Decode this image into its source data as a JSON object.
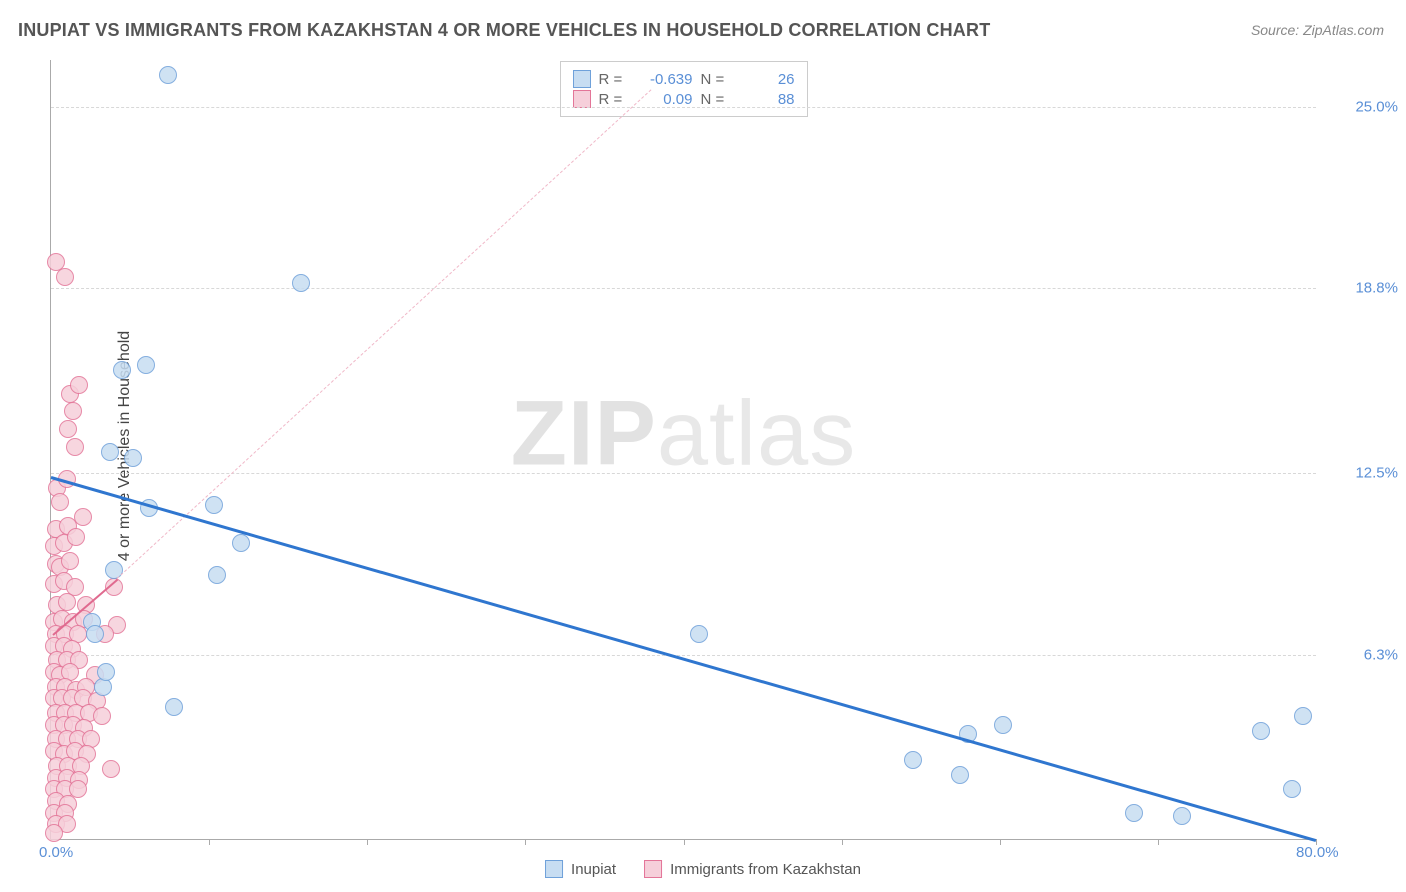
{
  "title": "INUPIAT VS IMMIGRANTS FROM KAZAKHSTAN 4 OR MORE VEHICLES IN HOUSEHOLD CORRELATION CHART",
  "source": "Source: ZipAtlas.com",
  "y_axis_label": "4 or more Vehicles in Household",
  "watermark_a": "ZIP",
  "watermark_b": "atlas",
  "chart": {
    "type": "scatter",
    "xlim": [
      0,
      80
    ],
    "ylim": [
      0,
      26.6
    ],
    "x_origin_label": "0.0%",
    "x_max_label": "80.0%",
    "y_ticks": [
      {
        "value": 6.3,
        "label": "6.3%"
      },
      {
        "value": 12.5,
        "label": "12.5%"
      },
      {
        "value": 18.8,
        "label": "18.8%"
      },
      {
        "value": 25.0,
        "label": "25.0%"
      }
    ],
    "x_tick_positions": [
      10,
      20,
      30,
      40,
      50,
      60,
      70,
      80
    ],
    "grid_color": "#d8d8d8",
    "background_color": "#ffffff",
    "series": [
      {
        "name": "Inupiat",
        "color_fill": "#c7ddf2",
        "color_stroke": "#6fa1da",
        "marker_radius": 9,
        "r": -0.639,
        "n": 26,
        "trend": {
          "x1": 0,
          "y1": 12.4,
          "x2": 80,
          "y2": 0.0,
          "color": "#2f76cf",
          "width": 3,
          "dash": false
        },
        "points": [
          {
            "x": 7.4,
            "y": 26.1
          },
          {
            "x": 15.8,
            "y": 19.0
          },
          {
            "x": 4.5,
            "y": 16.0
          },
          {
            "x": 6.0,
            "y": 16.2
          },
          {
            "x": 3.7,
            "y": 13.2
          },
          {
            "x": 5.2,
            "y": 13.0
          },
          {
            "x": 6.2,
            "y": 11.3
          },
          {
            "x": 10.3,
            "y": 11.4
          },
          {
            "x": 12.0,
            "y": 10.1
          },
          {
            "x": 4.0,
            "y": 9.2
          },
          {
            "x": 10.5,
            "y": 9.0
          },
          {
            "x": 2.6,
            "y": 7.4
          },
          {
            "x": 2.8,
            "y": 7.0
          },
          {
            "x": 7.8,
            "y": 4.5
          },
          {
            "x": 3.3,
            "y": 5.2
          },
          {
            "x": 3.5,
            "y": 5.7
          },
          {
            "x": 41.0,
            "y": 7.0
          },
          {
            "x": 54.5,
            "y": 2.7
          },
          {
            "x": 58.0,
            "y": 3.6
          },
          {
            "x": 60.2,
            "y": 3.9
          },
          {
            "x": 57.5,
            "y": 2.2
          },
          {
            "x": 68.5,
            "y": 0.9
          },
          {
            "x": 71.5,
            "y": 0.8
          },
          {
            "x": 76.5,
            "y": 3.7
          },
          {
            "x": 78.5,
            "y": 1.7
          },
          {
            "x": 79.2,
            "y": 4.2
          }
        ]
      },
      {
        "name": "Immigrants from Kazakhstan",
        "color_fill": "#f6cfda",
        "color_stroke": "#e37598",
        "marker_radius": 9,
        "r": 0.09,
        "n": 88,
        "trend": {
          "x1": 0.1,
          "y1": 7.0,
          "x2": 4.2,
          "y2": 8.9,
          "color": "#e06a8f",
          "width": 2.5,
          "dash": false
        },
        "trend_ext": {
          "x1": 4.2,
          "y1": 8.9,
          "x2": 38,
          "y2": 25.6,
          "color": "#f0b8c8",
          "width": 1,
          "dash": true
        },
        "points": [
          {
            "x": 0.3,
            "y": 19.7
          },
          {
            "x": 0.9,
            "y": 19.2
          },
          {
            "x": 1.2,
            "y": 15.2
          },
          {
            "x": 1.8,
            "y": 15.5
          },
          {
            "x": 1.4,
            "y": 14.6
          },
          {
            "x": 1.1,
            "y": 14.0
          },
          {
            "x": 1.5,
            "y": 13.4
          },
          {
            "x": 0.4,
            "y": 12.0
          },
          {
            "x": 0.6,
            "y": 11.5
          },
          {
            "x": 1.0,
            "y": 12.3
          },
          {
            "x": 0.3,
            "y": 10.6
          },
          {
            "x": 1.1,
            "y": 10.7
          },
          {
            "x": 2.0,
            "y": 11.0
          },
          {
            "x": 0.2,
            "y": 10.0
          },
          {
            "x": 0.8,
            "y": 10.1
          },
          {
            "x": 1.6,
            "y": 10.3
          },
          {
            "x": 0.3,
            "y": 9.4
          },
          {
            "x": 0.6,
            "y": 9.3
          },
          {
            "x": 1.2,
            "y": 9.5
          },
          {
            "x": 0.2,
            "y": 8.7
          },
          {
            "x": 0.8,
            "y": 8.8
          },
          {
            "x": 1.5,
            "y": 8.6
          },
          {
            "x": 4.0,
            "y": 8.6
          },
          {
            "x": 0.4,
            "y": 8.0
          },
          {
            "x": 1.0,
            "y": 8.1
          },
          {
            "x": 2.2,
            "y": 8.0
          },
          {
            "x": 0.2,
            "y": 7.4
          },
          {
            "x": 0.7,
            "y": 7.5
          },
          {
            "x": 1.4,
            "y": 7.4
          },
          {
            "x": 2.1,
            "y": 7.5
          },
          {
            "x": 4.2,
            "y": 7.3
          },
          {
            "x": 0.3,
            "y": 7.0
          },
          {
            "x": 0.9,
            "y": 7.0
          },
          {
            "x": 1.7,
            "y": 7.0
          },
          {
            "x": 3.4,
            "y": 7.0
          },
          {
            "x": 0.2,
            "y": 6.6
          },
          {
            "x": 0.8,
            "y": 6.6
          },
          {
            "x": 1.3,
            "y": 6.5
          },
          {
            "x": 0.4,
            "y": 6.1
          },
          {
            "x": 1.0,
            "y": 6.1
          },
          {
            "x": 1.8,
            "y": 6.1
          },
          {
            "x": 0.2,
            "y": 5.7
          },
          {
            "x": 0.6,
            "y": 5.6
          },
          {
            "x": 1.2,
            "y": 5.7
          },
          {
            "x": 2.8,
            "y": 5.6
          },
          {
            "x": 0.3,
            "y": 5.2
          },
          {
            "x": 0.9,
            "y": 5.2
          },
          {
            "x": 1.6,
            "y": 5.1
          },
          {
            "x": 2.2,
            "y": 5.2
          },
          {
            "x": 0.2,
            "y": 4.8
          },
          {
            "x": 0.7,
            "y": 4.8
          },
          {
            "x": 1.3,
            "y": 4.8
          },
          {
            "x": 2.0,
            "y": 4.8
          },
          {
            "x": 2.9,
            "y": 4.7
          },
          {
            "x": 0.3,
            "y": 4.3
          },
          {
            "x": 0.9,
            "y": 4.3
          },
          {
            "x": 1.6,
            "y": 4.3
          },
          {
            "x": 2.4,
            "y": 4.3
          },
          {
            "x": 0.2,
            "y": 3.9
          },
          {
            "x": 0.8,
            "y": 3.9
          },
          {
            "x": 1.4,
            "y": 3.9
          },
          {
            "x": 2.1,
            "y": 3.8
          },
          {
            "x": 0.3,
            "y": 3.4
          },
          {
            "x": 1.0,
            "y": 3.4
          },
          {
            "x": 1.7,
            "y": 3.4
          },
          {
            "x": 2.5,
            "y": 3.4
          },
          {
            "x": 0.2,
            "y": 3.0
          },
          {
            "x": 0.8,
            "y": 2.9
          },
          {
            "x": 1.5,
            "y": 3.0
          },
          {
            "x": 2.3,
            "y": 2.9
          },
          {
            "x": 0.4,
            "y": 2.5
          },
          {
            "x": 1.1,
            "y": 2.5
          },
          {
            "x": 1.9,
            "y": 2.5
          },
          {
            "x": 0.3,
            "y": 2.1
          },
          {
            "x": 1.0,
            "y": 2.1
          },
          {
            "x": 1.8,
            "y": 2.0
          },
          {
            "x": 0.2,
            "y": 1.7
          },
          {
            "x": 0.9,
            "y": 1.7
          },
          {
            "x": 1.7,
            "y": 1.7
          },
          {
            "x": 0.3,
            "y": 1.3
          },
          {
            "x": 1.1,
            "y": 1.2
          },
          {
            "x": 0.2,
            "y": 0.9
          },
          {
            "x": 0.9,
            "y": 0.9
          },
          {
            "x": 0.3,
            "y": 0.5
          },
          {
            "x": 1.0,
            "y": 0.5
          },
          {
            "x": 0.2,
            "y": 0.2
          },
          {
            "x": 3.8,
            "y": 2.4
          },
          {
            "x": 3.2,
            "y": 4.2
          }
        ]
      }
    ],
    "legend_top": {
      "r_label": "R =",
      "n_label": "N ="
    },
    "legend_bottom": true
  }
}
